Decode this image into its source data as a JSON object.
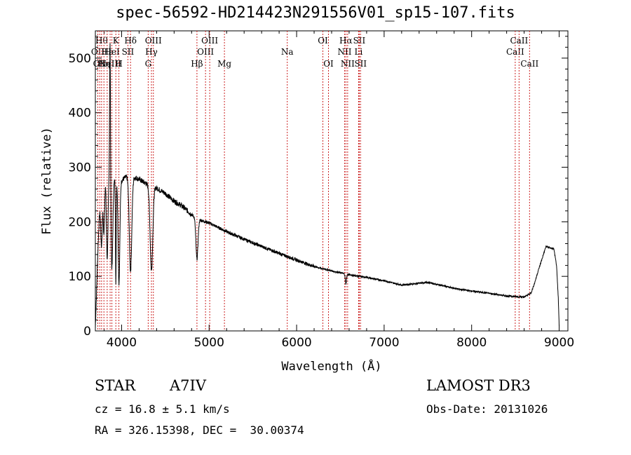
{
  "header": {
    "title": "spec-56592-HD214423N291556V01_sp15-107.fits"
  },
  "info": {
    "class_label": "STAR",
    "class_value": "A7IV",
    "survey": "LAMOST DR3",
    "redshift": "cz = 16.8 ± 5.1 km/s",
    "obs_date": "Obs-Date: 20131026",
    "coords": "RA = 326.15398, DEC =  30.00374"
  },
  "colors": {
    "line": "#000000",
    "marker": "#cc2222",
    "axis": "#000000"
  },
  "chart_data": {
    "type": "line",
    "title": "spec-56592-HD214423N291556V01_sp15-107.fits",
    "xlabel": "Wavelength (Å)",
    "ylabel": "Flux (relative)",
    "xlim": [
      3700,
      9100
    ],
    "ylim": [
      0,
      550
    ],
    "x_ticks": [
      4000,
      5000,
      6000,
      7000,
      8000,
      9000
    ],
    "y_ticks": [
      0,
      100,
      200,
      300,
      400,
      500
    ],
    "grid": false,
    "continuum": {
      "x": [
        3700,
        3730,
        3760,
        3800,
        3850,
        3900,
        3950,
        4000,
        4050,
        4100,
        4200,
        4300,
        4400,
        4500,
        4600,
        4700,
        4800,
        4900,
        5000,
        5100,
        5200,
        5400,
        5600,
        5800,
        6000,
        6200,
        6400,
        6600,
        6800,
        7000,
        7200,
        7500,
        7800,
        8000,
        8200,
        8400,
        8600,
        8680,
        8720,
        8760,
        8800,
        8850,
        8900,
        8940,
        8970,
        8990,
        9000
      ],
      "y": [
        5,
        150,
        270,
        290,
        280,
        275,
        278,
        276,
        282,
        285,
        278,
        268,
        262,
        252,
        238,
        228,
        213,
        203,
        198,
        190,
        182,
        168,
        155,
        142,
        130,
        118,
        110,
        103,
        98,
        92,
        84,
        89,
        78,
        73,
        69,
        64,
        62,
        70,
        88,
        110,
        130,
        155,
        152,
        150,
        120,
        60,
        10
      ]
    },
    "absorption_features": [
      {
        "x": 3770,
        "depth": 120,
        "width": 10
      },
      {
        "x": 3798,
        "depth": 110,
        "width": 8
      },
      {
        "x": 3835,
        "depth": 150,
        "width": 9
      },
      {
        "x": 3889,
        "depth": 160,
        "width": 10
      },
      {
        "x": 3934,
        "depth": 195,
        "width": 4
      },
      {
        "x": 3970,
        "depth": 190,
        "width": 10
      },
      {
        "x": 4102,
        "depth": 175,
        "width": 14
      },
      {
        "x": 4341,
        "depth": 155,
        "width": 15
      },
      {
        "x": 4861,
        "depth": 75,
        "width": 12
      },
      {
        "x": 6563,
        "depth": 18,
        "width": 7
      }
    ],
    "emission_features": [
      {
        "x": 3868,
        "height": 270,
        "width": 5
      }
    ],
    "line_markers": [
      {
        "x": 3728,
        "label": "OII",
        "row": 2
      },
      {
        "x": 3750,
        "label": "OII",
        "row": 3
      },
      {
        "x": 3771,
        "label": "Hθ",
        "row": 1
      },
      {
        "x": 3798,
        "label": "Hη",
        "row": 3
      },
      {
        "x": 3835,
        "label": "Hε",
        "row": 2
      },
      {
        "x": 3869,
        "label": "NeIII",
        "row": 3
      },
      {
        "x": 3889,
        "label": "HeI",
        "row": 2
      },
      {
        "x": 3934,
        "label": "K",
        "row": 1
      },
      {
        "x": 3969,
        "label": "H",
        "row": 3
      },
      {
        "x": 4072,
        "label": "SII",
        "row": 2
      },
      {
        "x": 4102,
        "label": "Hδ",
        "row": 1
      },
      {
        "x": 4304,
        "label": "G",
        "row": 3
      },
      {
        "x": 4341,
        "label": "Hγ",
        "row": 2
      },
      {
        "x": 4363,
        "label": "OIII",
        "row": 1
      },
      {
        "x": 4861,
        "label": "Hβ",
        "row": 3
      },
      {
        "x": 4959,
        "label": "OIII",
        "row": 2
      },
      {
        "x": 5007,
        "label": "OIII",
        "row": 1
      },
      {
        "x": 5175,
        "label": "Mg",
        "row": 3
      },
      {
        "x": 5893,
        "label": "Na",
        "row": 2
      },
      {
        "x": 6300,
        "label": "OI",
        "row": 1
      },
      {
        "x": 6364,
        "label": "OI",
        "row": 3
      },
      {
        "x": 6548,
        "label": "NII",
        "row": 2
      },
      {
        "x": 6563,
        "label": "Hα",
        "row": 1
      },
      {
        "x": 6583,
        "label": "NII",
        "row": 3
      },
      {
        "x": 6708,
        "label": "Li",
        "row": 2
      },
      {
        "x": 6716,
        "label": "SII",
        "row": 1
      },
      {
        "x": 6731,
        "label": "SII",
        "row": 3
      },
      {
        "x": 8498,
        "label": "CaII",
        "row": 2
      },
      {
        "x": 8542,
        "label": "CaII",
        "row": 1
      },
      {
        "x": 8662,
        "label": "CaII",
        "row": 3
      }
    ]
  }
}
